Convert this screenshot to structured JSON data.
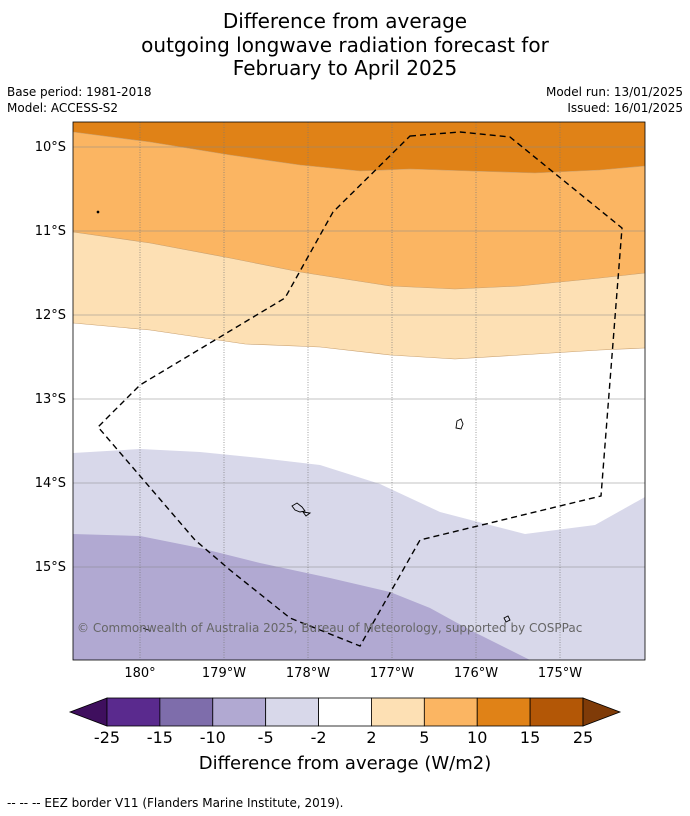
{
  "title_lines": [
    "Difference from average",
    "outgoing longwave radiation forecast for",
    "February to April 2025"
  ],
  "meta": {
    "base_period": "Base period: 1981-2018",
    "model": "Model: ACCESS-S2",
    "model_run": "Model run: 13/01/2025",
    "issued": "Issued: 16/01/2025"
  },
  "map": {
    "lat_labels": [
      "10°S",
      "11°S",
      "12°S",
      "13°S",
      "14°S",
      "15°S"
    ],
    "lon_labels": [
      "180°",
      "179°W",
      "178°W",
      "177°W",
      "176°W",
      "175°W"
    ],
    "copyright": "© Commonwealth of Australia 2025, Bureau of Meteorology, supported by COSPPac"
  },
  "colorbar": {
    "labels": [
      "-25",
      "-15",
      "-10",
      "-5",
      "-2",
      "2",
      "5",
      "10",
      "15",
      "25"
    ],
    "colors": [
      "#3f0f5e",
      "#5a2a8e",
      "#7e6dab",
      "#b1a9d2",
      "#d8d8ea",
      "#ffffff",
      "#fde0b4",
      "#fbb562",
      "#e08217",
      "#b35706",
      "#7f3b08"
    ],
    "title": "Difference from average (W/m2)"
  },
  "footer": "--  --  -- EEZ border V11 (Flanders Marine Institute, 2019)."
}
